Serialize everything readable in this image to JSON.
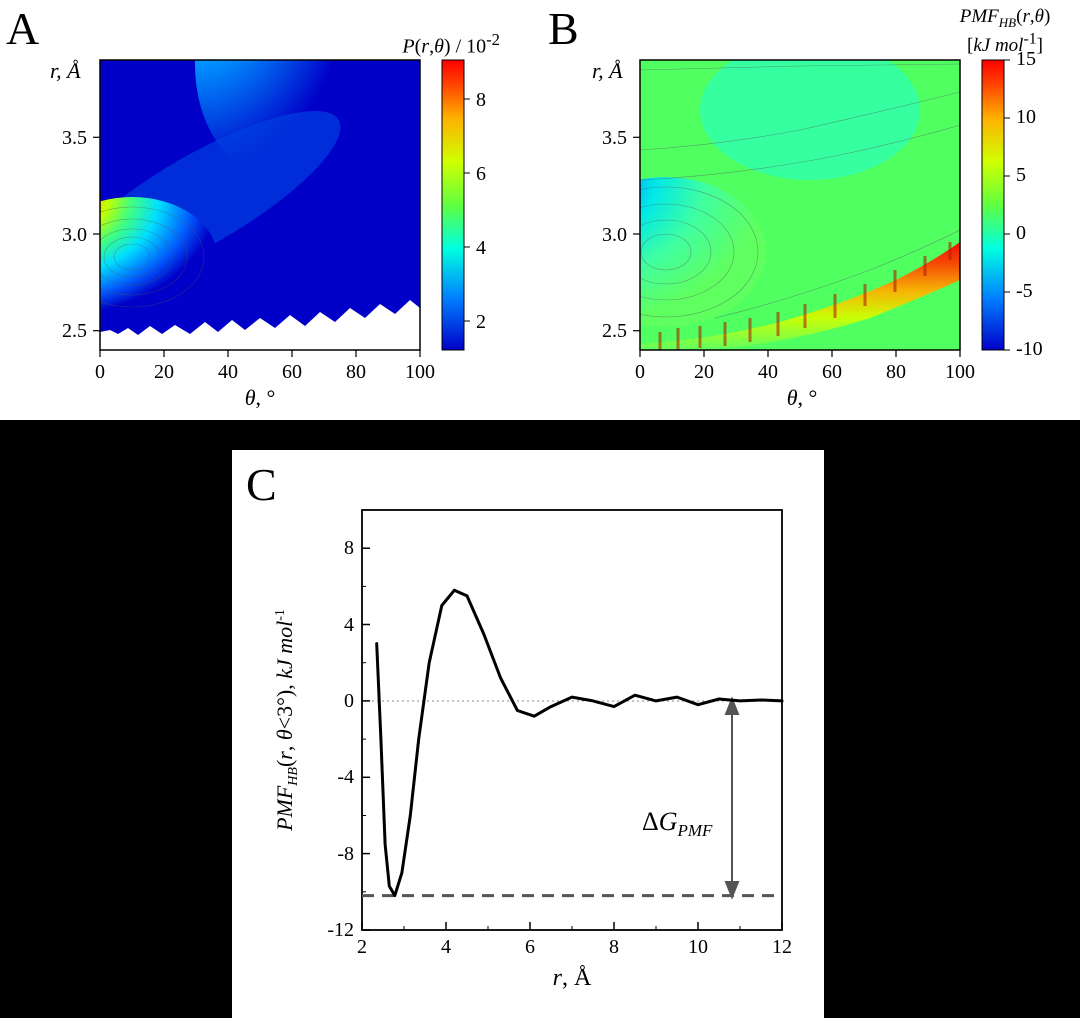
{
  "panelA": {
    "label": "A",
    "type": "heatmap",
    "y_axis_label": "r, Å",
    "x_axis_label": "θ, °",
    "colorbar_title": "P(r,θ) / 10⁻²",
    "xlim": [
      0,
      100
    ],
    "ylim": [
      2.4,
      3.9
    ],
    "xticks": [
      0,
      20,
      40,
      60,
      80,
      100
    ],
    "yticks": [
      2.5,
      3.0,
      3.5
    ],
    "colorbar_ticks": [
      2,
      4,
      6,
      8
    ],
    "colormap": [
      "#0000c8",
      "#00a0ff",
      "#00ffb0",
      "#80ff00",
      "#ffff00",
      "#ff8000",
      "#ff0000"
    ],
    "background_color": "#ffffff",
    "hotspot": {
      "theta": 10,
      "r": 2.78,
      "value": 8.5
    },
    "secondary_lobe": {
      "theta": 55,
      "r": 3.8,
      "value": 2
    }
  },
  "panelB": {
    "label": "B",
    "type": "heatmap",
    "y_axis_label": "r, Å",
    "x_axis_label": "θ, °",
    "colorbar_title": "PMF_HB(r,θ)",
    "colorbar_unit": "[kJ mol⁻¹]",
    "xlim": [
      0,
      100
    ],
    "ylim": [
      2.4,
      3.9
    ],
    "xticks": [
      0,
      20,
      40,
      60,
      80,
      100
    ],
    "yticks": [
      2.5,
      3.0,
      3.5
    ],
    "colorbar_ticks": [
      -10,
      -5,
      0,
      5,
      10,
      15
    ],
    "colormap": [
      "#0000c8",
      "#00a0ff",
      "#00ffb0",
      "#80ff00",
      "#ffff00",
      "#ff8000",
      "#ff0000"
    ],
    "background_color": "#ffffff",
    "minimum": {
      "theta": 8,
      "r": 2.78,
      "value": -10
    }
  },
  "panelC": {
    "label": "C",
    "type": "line",
    "y_axis_label": "PMF_HB(r, θ<3°), kJ mol⁻¹",
    "x_axis_label": "r, Å",
    "xlim": [
      2,
      12
    ],
    "ylim": [
      -12,
      10
    ],
    "xticks": [
      2,
      4,
      6,
      8,
      10,
      12
    ],
    "yticks": [
      -12,
      -8,
      -4,
      0,
      4,
      8
    ],
    "line_color": "#000000",
    "line_width": 2.5,
    "dashed_line_color": "#666666",
    "annotation": "ΔG_PMF",
    "zero_line_y": 0,
    "min_line_y": -10.2,
    "curve": [
      [
        2.35,
        3.0
      ],
      [
        2.45,
        -2.0
      ],
      [
        2.55,
        -7.5
      ],
      [
        2.65,
        -9.7
      ],
      [
        2.78,
        -10.2
      ],
      [
        2.95,
        -9.0
      ],
      [
        3.15,
        -6.0
      ],
      [
        3.35,
        -2.0
      ],
      [
        3.6,
        2.0
      ],
      [
        3.9,
        5.0
      ],
      [
        4.2,
        5.8
      ],
      [
        4.5,
        5.5
      ],
      [
        4.9,
        3.5
      ],
      [
        5.3,
        1.2
      ],
      [
        5.7,
        -0.5
      ],
      [
        6.1,
        -0.8
      ],
      [
        6.5,
        -0.3
      ],
      [
        7.0,
        0.2
      ],
      [
        7.5,
        0.0
      ],
      [
        8.0,
        -0.3
      ],
      [
        8.5,
        0.3
      ],
      [
        9.0,
        0.0
      ],
      [
        9.5,
        0.2
      ],
      [
        10.0,
        -0.2
      ],
      [
        10.5,
        0.1
      ],
      [
        11.0,
        0.0
      ],
      [
        11.5,
        0.05
      ],
      [
        12.0,
        0.0
      ]
    ]
  }
}
